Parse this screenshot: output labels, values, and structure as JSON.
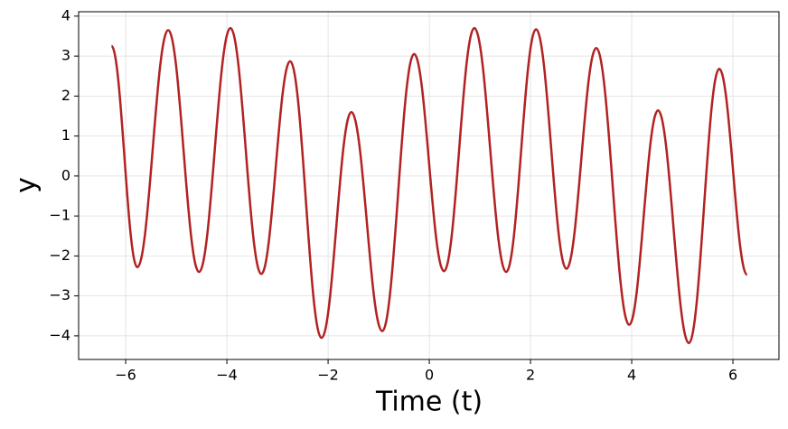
{
  "chart_data": {
    "type": "line",
    "x_label": "Time (t)",
    "y_label": "y",
    "x": [
      -6.28,
      -5.77,
      -5.16,
      -4.55,
      -3.93,
      -3.32,
      -2.75,
      -2.13,
      -1.54,
      -0.93,
      -0.3,
      0.29,
      0.89,
      1.52,
      2.11,
      2.71,
      3.3,
      3.95,
      4.52,
      5.13,
      5.73,
      6.28
    ],
    "series": [
      {
        "color": "#b22222",
        "values": [
          3.25,
          -2.28,
          3.65,
          -2.4,
          3.7,
          -2.45,
          2.87,
          -4.05,
          1.6,
          -3.88,
          3.05,
          -2.38,
          3.7,
          -2.4,
          3.67,
          -2.32,
          3.2,
          -3.72,
          1.64,
          -4.18,
          2.68,
          -2.47
        ]
      }
    ],
    "xlim": [
      -6.93,
      6.91
    ],
    "ylim": [
      -4.59,
      4.11
    ],
    "xticks": [
      {
        "value": -6,
        "label": "−6"
      },
      {
        "value": -4,
        "label": "−4"
      },
      {
        "value": -2,
        "label": "−2"
      },
      0,
      2,
      4,
      6
    ],
    "yticks": [
      {
        "value": -4,
        "label": "−4"
      },
      {
        "value": -3,
        "label": "−3"
      },
      {
        "value": -2,
        "label": "−2"
      },
      {
        "value": -1,
        "label": "−1"
      },
      0,
      1,
      2,
      3,
      4
    ],
    "grid": true
  }
}
